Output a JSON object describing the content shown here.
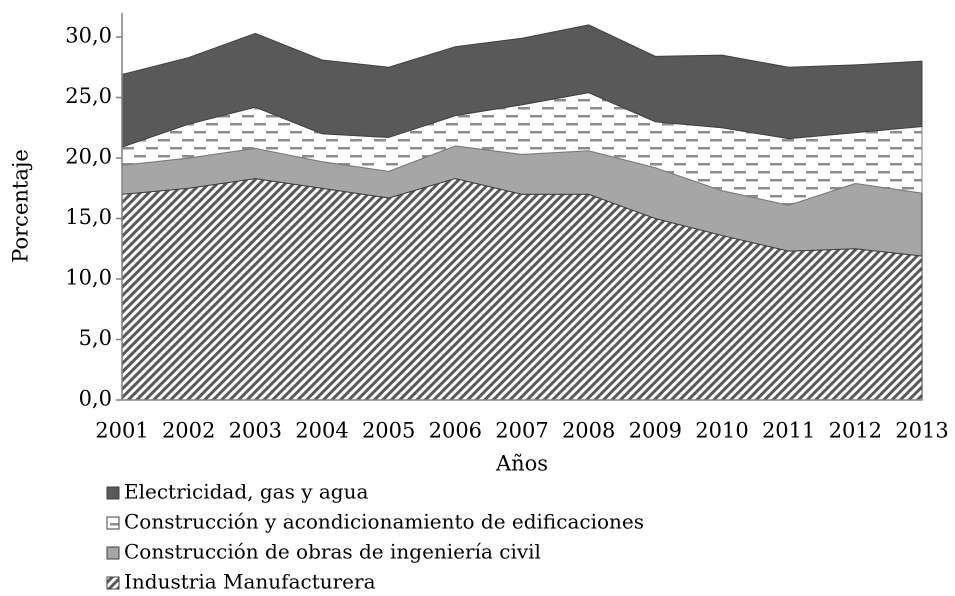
{
  "chart_data": {
    "type": "area",
    "stacked": true,
    "x_label": "Años",
    "y_label": "Porcentaje",
    "categories": [
      "2001",
      "2002",
      "2003",
      "2004",
      "2005",
      "2006",
      "2007",
      "2008",
      "2009",
      "2010",
      "2011",
      "2012",
      "2013"
    ],
    "series": [
      {
        "name": "Industria Manufacturera",
        "color": "#595959",
        "pattern": "diagonal",
        "values": [
          17.0,
          17.5,
          18.3,
          17.5,
          16.7,
          18.3,
          17.0,
          17.0,
          15.0,
          13.6,
          12.3,
          12.5,
          11.9
        ]
      },
      {
        "name": "Construcción de obras de ingeniería civil",
        "color": "#a6a6a6",
        "pattern": "solid",
        "values": [
          2.4,
          2.5,
          2.5,
          2.2,
          2.2,
          2.7,
          3.3,
          3.6,
          4.2,
          3.7,
          3.8,
          5.4,
          5.2
        ]
      },
      {
        "name": "Construcción y acondicionamiento de edificaciones",
        "color": "#8c8c8c",
        "pattern": "dashes",
        "values": [
          1.5,
          2.8,
          3.4,
          2.3,
          2.8,
          2.5,
          4.1,
          4.8,
          3.8,
          5.2,
          5.5,
          4.2,
          5.5
        ]
      },
      {
        "name": "Electricidad, gas y agua",
        "color": "#595959",
        "pattern": "solid",
        "values": [
          6.0,
          5.5,
          6.1,
          6.1,
          5.8,
          5.7,
          5.5,
          5.6,
          5.4,
          6.0,
          5.9,
          5.6,
          5.4
        ]
      }
    ],
    "ylim": [
      0,
      32
    ],
    "yticks": [
      {
        "value": 0,
        "label": "0,0"
      },
      {
        "value": 5,
        "label": "5,0"
      },
      {
        "value": 10,
        "label": "10,0"
      },
      {
        "value": 15,
        "label": "15,0"
      },
      {
        "value": 20,
        "label": "20,0"
      },
      {
        "value": 25,
        "label": "25,0"
      },
      {
        "value": 30,
        "label": "30,0"
      }
    ],
    "grid": false,
    "legend": "bottom"
  }
}
